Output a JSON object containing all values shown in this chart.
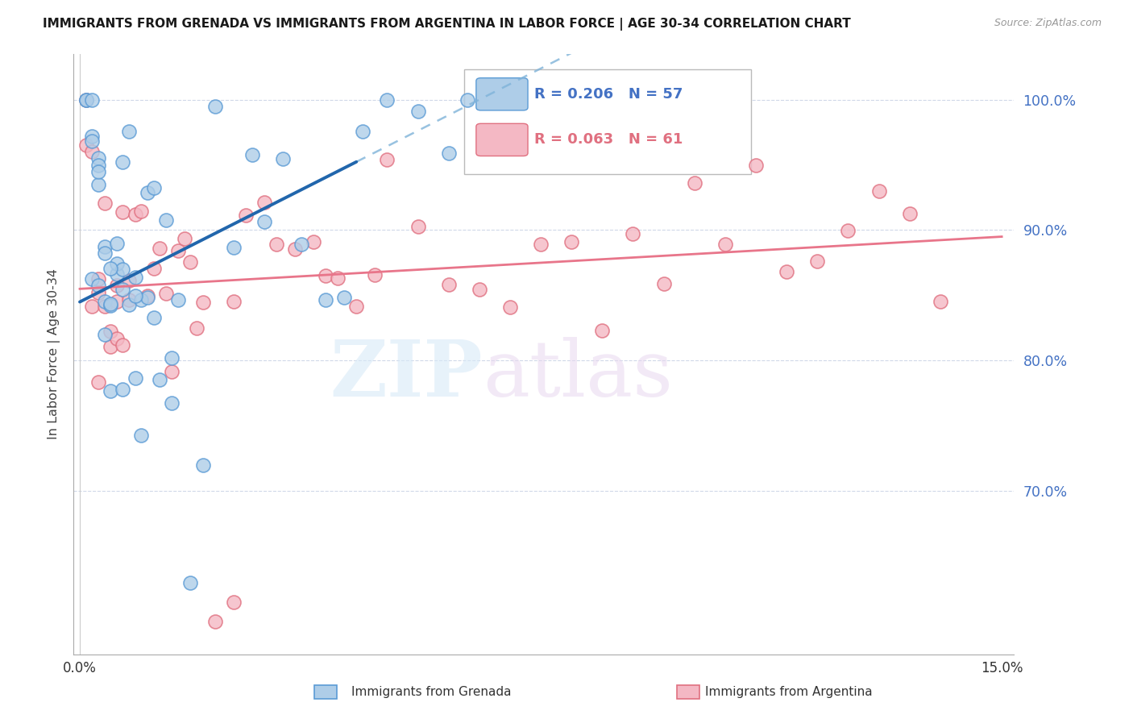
{
  "title": "IMMIGRANTS FROM GRENADA VS IMMIGRANTS FROM ARGENTINA IN LABOR FORCE | AGE 30-34 CORRELATION CHART",
  "source": "Source: ZipAtlas.com",
  "ylabel": "In Labor Force | Age 30-34",
  "yticks_labels": [
    "100.0%",
    "90.0%",
    "80.0%",
    "70.0%"
  ],
  "yticks_vals": [
    1.0,
    0.9,
    0.8,
    0.7
  ],
  "xticks_labels": [
    "0.0%",
    "15.0%"
  ],
  "xticks_vals": [
    0.0,
    0.15
  ],
  "xlim": [
    -0.001,
    0.152
  ],
  "ylim": [
    0.575,
    1.035
  ],
  "R_grenada": 0.206,
  "N_grenada": 57,
  "R_argentina": 0.063,
  "N_argentina": 61,
  "color_grenada_fill": "#aecde8",
  "color_grenada_edge": "#5b9bd5",
  "color_argentina_fill": "#f4b8c4",
  "color_argentina_edge": "#e07080",
  "line_color_grenada": "#2166ac",
  "line_color_argentina": "#e8758a",
  "line_color_grenada_dash": "#7fb3d9",
  "axis_tick_color_y": "#4472c4",
  "grid_color": "#d0d8e8",
  "watermark_zip_color": "#d8eaf8",
  "watermark_atlas_color": "#e8d8f0"
}
